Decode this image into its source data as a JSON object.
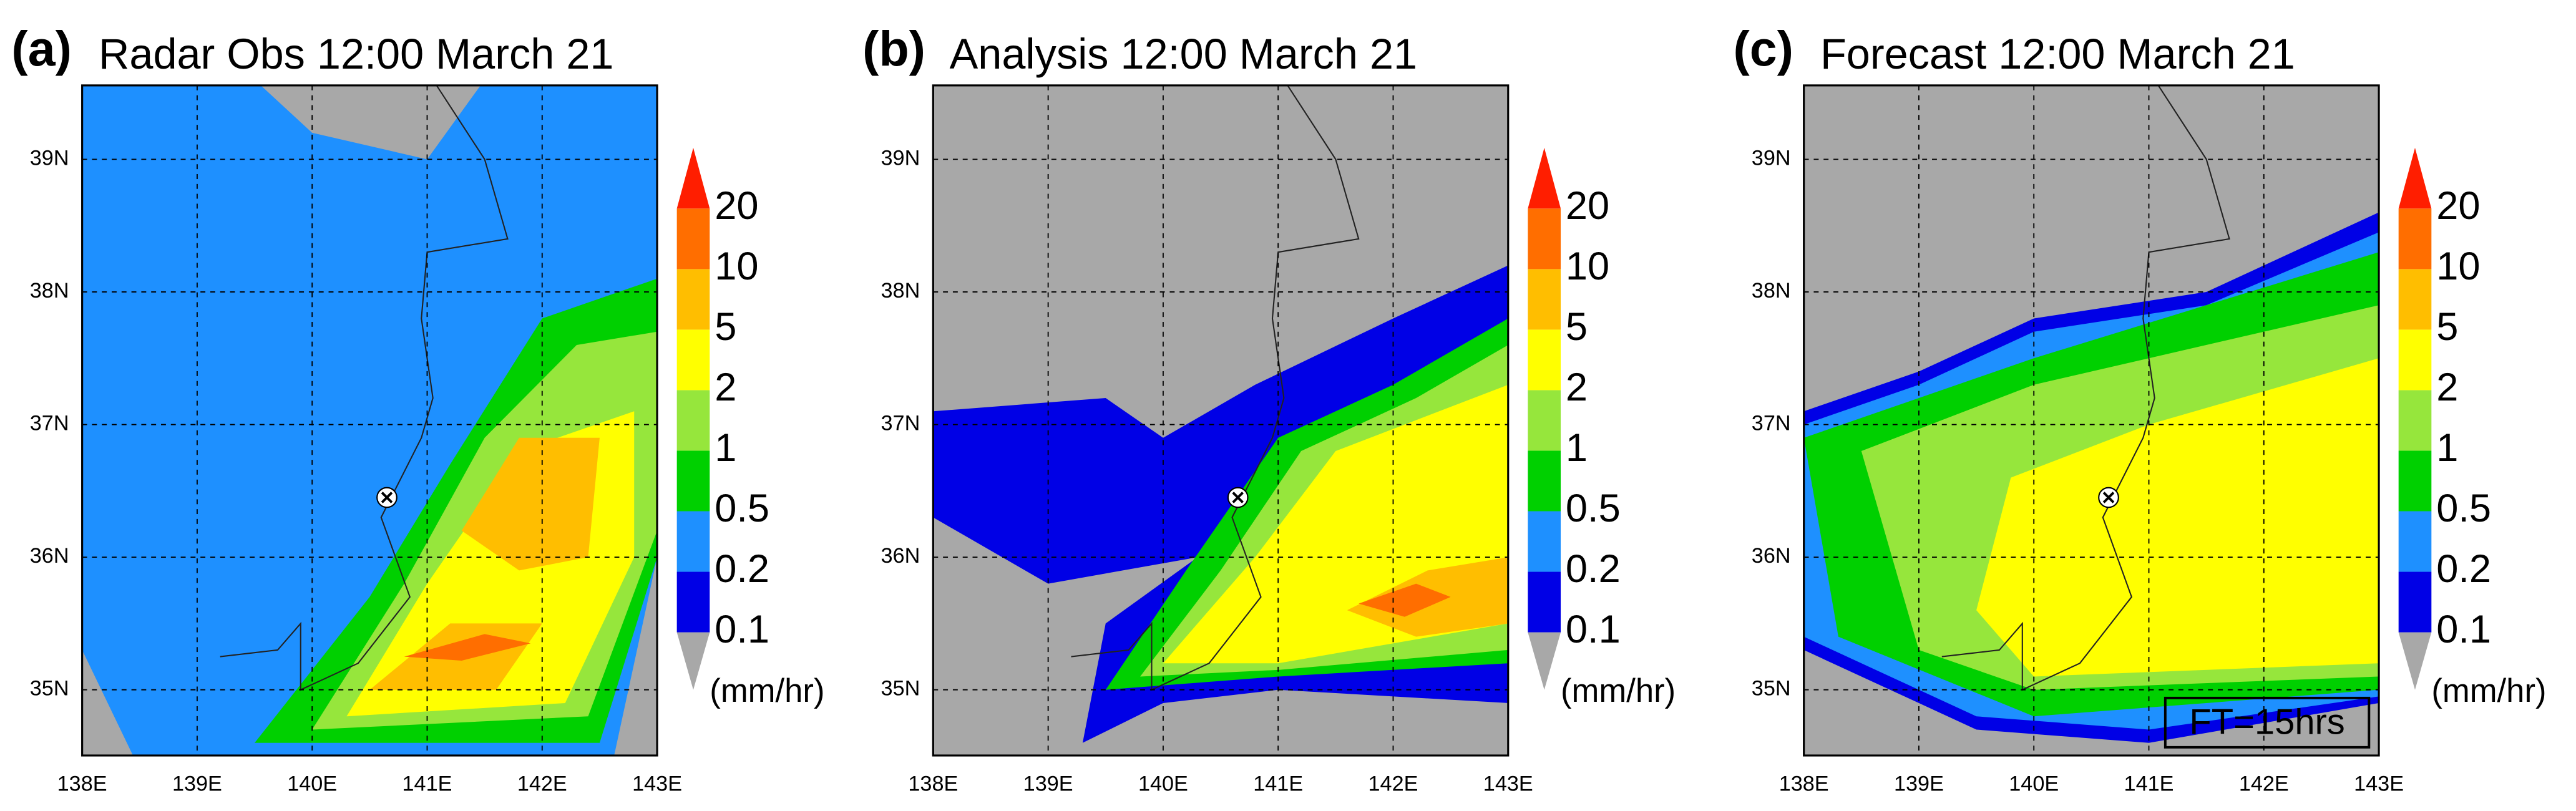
{
  "panels": [
    {
      "label": "(a)",
      "title": "Radar Obs 12:00 March 21"
    },
    {
      "label": "(b)",
      "title": "Analysis 12:00 March 21"
    },
    {
      "label": "(c)",
      "title": "Forecast 12:00 March 21",
      "annotation": "FT=15hrs"
    }
  ],
  "lon_ticks": [
    "138E",
    "139E",
    "140E",
    "141E",
    "142E",
    "143E"
  ],
  "lat_ticks": [
    "35N",
    "36N",
    "37N",
    "38N",
    "39N"
  ],
  "colorbar": {
    "levels": [
      0.1,
      0.2,
      0.5,
      1,
      2,
      5,
      10,
      20
    ],
    "colors": [
      "#a8a8a8",
      "#0000e6",
      "#1e90ff",
      "#00d000",
      "#96e63c",
      "#ffff00",
      "#ffbe00",
      "#ff6e00",
      "#ff1e00"
    ],
    "unit": "(mm/hr)"
  }
}
